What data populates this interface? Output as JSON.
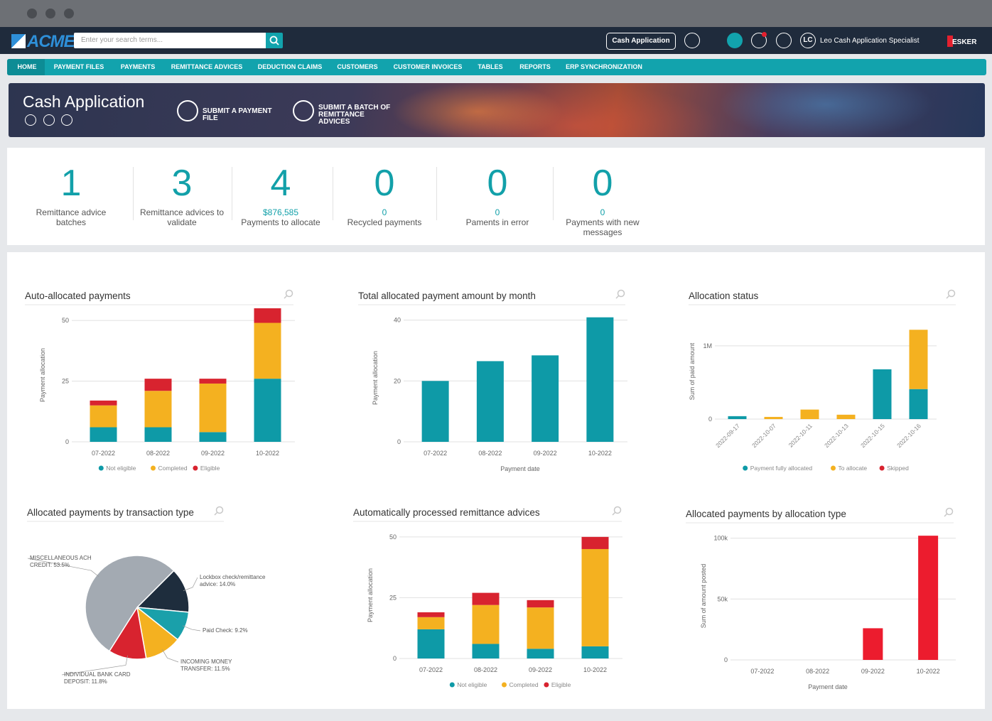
{
  "header": {
    "logo": "ACME",
    "search_placeholder": "Enter your search terms...",
    "app_button": "Cash Application",
    "user_initials": "LC",
    "user_name": "Leo Cash Application Specialist",
    "brand": "ESKER"
  },
  "nav": [
    "HOME",
    "PAYMENT FILES",
    "PAYMENTS",
    "REMITTANCE ADVICES",
    "DEDUCTION CLAIMS",
    "CUSTOMERS",
    "CUSTOMER INVOICES",
    "TABLES",
    "REPORTS",
    "ERP SYNCHRONIZATION"
  ],
  "banner": {
    "title": "Cash Application",
    "actions": [
      "SUBMIT A PAYMENT FILE",
      "SUBMIT A BATCH OF REMITTANCE ADVICES"
    ]
  },
  "kpis": [
    {
      "value": 1,
      "label": "Remittance advice batches"
    },
    {
      "value": 3,
      "label": "Remittance advices to validate"
    },
    {
      "value": 4,
      "sub": "$876,585",
      "label": "Payments to allocate"
    },
    {
      "value": 0,
      "sub": 0,
      "label": "Recycled payments"
    },
    {
      "value": 0,
      "sub": 0,
      "label": "Paments in error"
    },
    {
      "value": 0,
      "sub": 0,
      "label": "Payments with new messages"
    }
  ],
  "chart_data": [
    {
      "type": "bar",
      "title": "Auto-allocated payments",
      "y_label": "Payment allocation",
      "categories": [
        "07-2022",
        "08-2022",
        "09-2022",
        "10-2022"
      ],
      "series": [
        {
          "name": "Not eligible",
          "color": "#0e9aa7",
          "values": [
            6,
            6,
            4,
            26
          ]
        },
        {
          "name": "Completed",
          "color": "#f4b120",
          "values": [
            9,
            15,
            20,
            23
          ]
        },
        {
          "name": "Eligible",
          "color": "#d8232f",
          "values": [
            2,
            5,
            2,
            6
          ]
        }
      ],
      "ylim": [
        0,
        55
      ],
      "yticks": [
        0,
        25,
        50
      ],
      "grid": true,
      "legend": "bottom"
    },
    {
      "type": "bar",
      "title": "Total allocated payment amount by month",
      "y_label": "Payment allocation",
      "x_label": "Payment date",
      "categories": [
        "07-2022",
        "08-2022",
        "09-2022",
        "10-2022"
      ],
      "values": [
        20,
        26.5,
        28.4,
        40.9
      ],
      "color": "#0e9aa7",
      "ylim": [
        0,
        42
      ],
      "yticks": [
        0,
        20,
        40
      ],
      "grid": true
    },
    {
      "type": "bar",
      "title": "Allocation status",
      "y_label": "Sum of paid amount",
      "categories": [
        "2022-09-17",
        "2022-10-07",
        "2022-10-11",
        "2022-10-13",
        "2022-10-15",
        "2022-10-16"
      ],
      "series": [
        {
          "name": "Payment fully allocated",
          "color": "#0e9aa7",
          "values": [
            40000,
            0,
            0,
            0,
            680000,
            410000
          ]
        },
        {
          "name": "To allocate",
          "color": "#f4b120",
          "values": [
            0,
            30000,
            130000,
            60000,
            0,
            810000
          ]
        },
        {
          "name": "Skipped",
          "color": "#d8232f",
          "values": [
            0,
            0,
            0,
            0,
            0,
            0
          ]
        }
      ],
      "ylim": [
        0,
        1300000
      ],
      "yticks": [
        0,
        {
          "value": 1000000,
          "label": "1M"
        }
      ],
      "grid": true,
      "legend": "bottom"
    },
    {
      "type": "pie",
      "title": "Allocated payments by transaction type",
      "values": [
        14.0,
        9.2,
        11.5,
        11.8,
        53.5
      ],
      "value_labels": [
        "Lockbox check/remittance advice: 14.0%",
        "Paid Check: 9.2%",
        "INCOMING MONEY TRANSFER: 11.5%",
        "INDIVIDUAL BANK CARD DEPOSIT: 11.8%",
        "MISCELLANEOUS ACH CREDIT: 53.5%"
      ],
      "colors": [
        "#1e2d3d",
        "#1aa0aa",
        "#f4b120",
        "#d8232f",
        "#a3aab2"
      ]
    },
    {
      "type": "bar",
      "title": "Automatically processed remittance advices",
      "y_label": "Payment allocation",
      "categories": [
        "07-2022",
        "08-2022",
        "09-2022",
        "10-2022"
      ],
      "series": [
        {
          "name": "Not eligible",
          "color": "#0e9aa7",
          "values": [
            12,
            6,
            4,
            5
          ]
        },
        {
          "name": "Completed",
          "color": "#f4b120",
          "values": [
            5,
            16,
            17,
            40
          ]
        },
        {
          "name": "Eligible",
          "color": "#d8232f",
          "values": [
            2,
            5,
            3,
            5
          ]
        }
      ],
      "ylim": [
        0,
        52
      ],
      "yticks": [
        0,
        25,
        50
      ],
      "grid": true,
      "legend": "bottom"
    },
    {
      "type": "bar",
      "title": "Allocated payments by allocation type",
      "y_label": "Sum of amount posted",
      "x_label": "Payment date",
      "categories": [
        "07-2022",
        "08-2022",
        "09-2022",
        "10-2022"
      ],
      "values": [
        0,
        0,
        26000,
        102000
      ],
      "color": "#ec1c2e",
      "ylim": [
        0,
        105000
      ],
      "yticks": [
        0,
        {
          "value": 50000,
          "label": "50k"
        },
        {
          "value": 100000,
          "label": "100k"
        }
      ],
      "grid": true
    }
  ]
}
